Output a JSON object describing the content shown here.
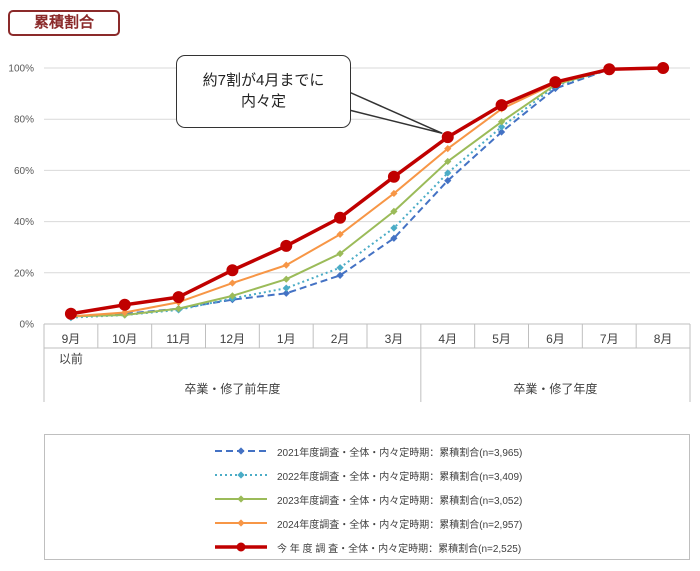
{
  "tag": "累積割合",
  "callout": {
    "line1": "約7割が4月までに",
    "line2": "内々定"
  },
  "chart_data": {
    "type": "line",
    "categories": [
      "9月\n以前",
      "10月",
      "11月",
      "12月",
      "1月",
      "2月",
      "3月",
      "4月",
      "5月",
      "6月",
      "7月",
      "8月"
    ],
    "groups": [
      {
        "label": "卒業・修了前年度",
        "from": 0,
        "to": 6
      },
      {
        "label": "卒業・修了年度",
        "from": 7,
        "to": 11
      }
    ],
    "ylim": [
      0,
      100
    ],
    "yticks": [
      "0%",
      "20%",
      "40%",
      "60%",
      "80%",
      "100%"
    ],
    "grid": true,
    "legend_position": "bottom",
    "series": [
      {
        "name": "2021年度調査・全体・内々定時期：累積割合(n=3,965)",
        "color": "#4472c4",
        "style": "dashed",
        "marker": "diamond",
        "width": 2,
        "values": [
          3,
          4,
          6,
          9.5,
          12,
          19,
          33.5,
          56,
          75,
          92,
          99.5,
          100
        ]
      },
      {
        "name": "2022年度調査・全体・内々定時期：累積割合(n=3,409)",
        "color": "#4bacc6",
        "style": "dotted",
        "marker": "diamond",
        "width": 2,
        "values": [
          2.5,
          3.5,
          5.5,
          10,
          14,
          22,
          37.5,
          59,
          77,
          93,
          99.5,
          100
        ]
      },
      {
        "name": "2023年度調査・全体・内々定時期：累積割合(n=3,052)",
        "color": "#9bbb59",
        "style": "solid",
        "marker": "diamond",
        "width": 2,
        "values": [
          3,
          3.5,
          6,
          11,
          17.5,
          27.5,
          44,
          63.5,
          79,
          93.5,
          99.5,
          100
        ]
      },
      {
        "name": "2024年度調査・全体・内々定時期：累積割合(n=2,957)",
        "color": "#f79646",
        "style": "solid",
        "marker": "diamond",
        "width": 2,
        "values": [
          3,
          4.5,
          8.5,
          16,
          23,
          35,
          51,
          68.5,
          84,
          94,
          99.5,
          100
        ]
      },
      {
        "name": "今 年 度 調 査・全体・内々定時期：累積割合(n=2,525)",
        "color": "#c00000",
        "style": "solid",
        "marker": "circle",
        "width": 3.5,
        "values": [
          4,
          7.5,
          10.5,
          21,
          30.5,
          41.5,
          57.5,
          73,
          85.5,
          94.5,
          99.5,
          100
        ]
      }
    ]
  }
}
